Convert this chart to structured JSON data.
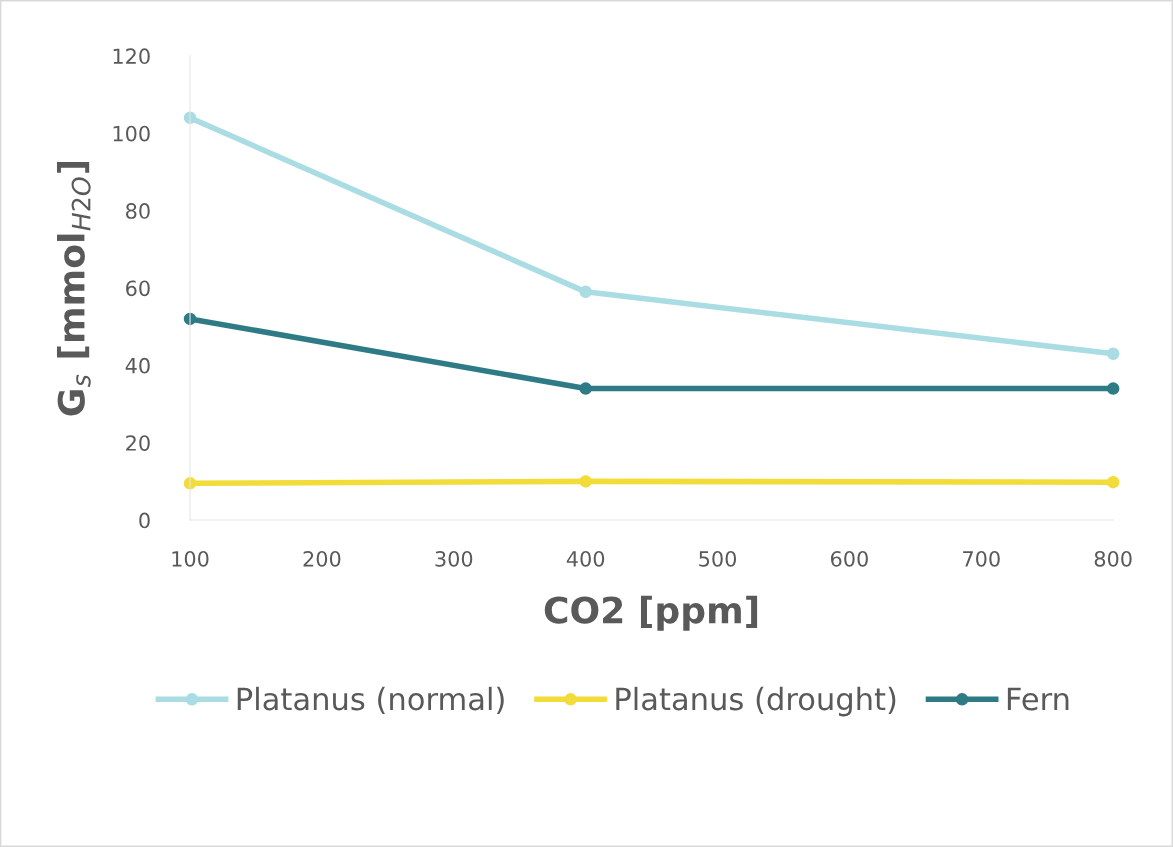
{
  "chart_data": {
    "type": "line",
    "x": [
      100,
      400,
      800
    ],
    "series": [
      {
        "name": "Platanus (normal)",
        "color": "#a9dce3",
        "values": [
          104,
          59,
          43
        ]
      },
      {
        "name": "Platanus (drought)",
        "color": "#f2dc3a",
        "values": [
          9.5,
          10,
          9.8
        ]
      },
      {
        "name": "Fern",
        "color": "#2e7b86",
        "values": [
          52,
          34,
          34
        ]
      }
    ],
    "xlabel": "CO2 [ppm]",
    "ylabel": "G$_{s}$ [mmol$_{H2O}$]",
    "xlim": [
      100,
      800
    ],
    "xticks": [
      100,
      200,
      300,
      400,
      500,
      600,
      700,
      800
    ],
    "ylim": [
      0,
      120
    ],
    "yticks": [
      0,
      20,
      40,
      60,
      80,
      100,
      120
    ],
    "grid": false,
    "legend": "bottom",
    "marker": "circle",
    "line_style": "solid"
  }
}
